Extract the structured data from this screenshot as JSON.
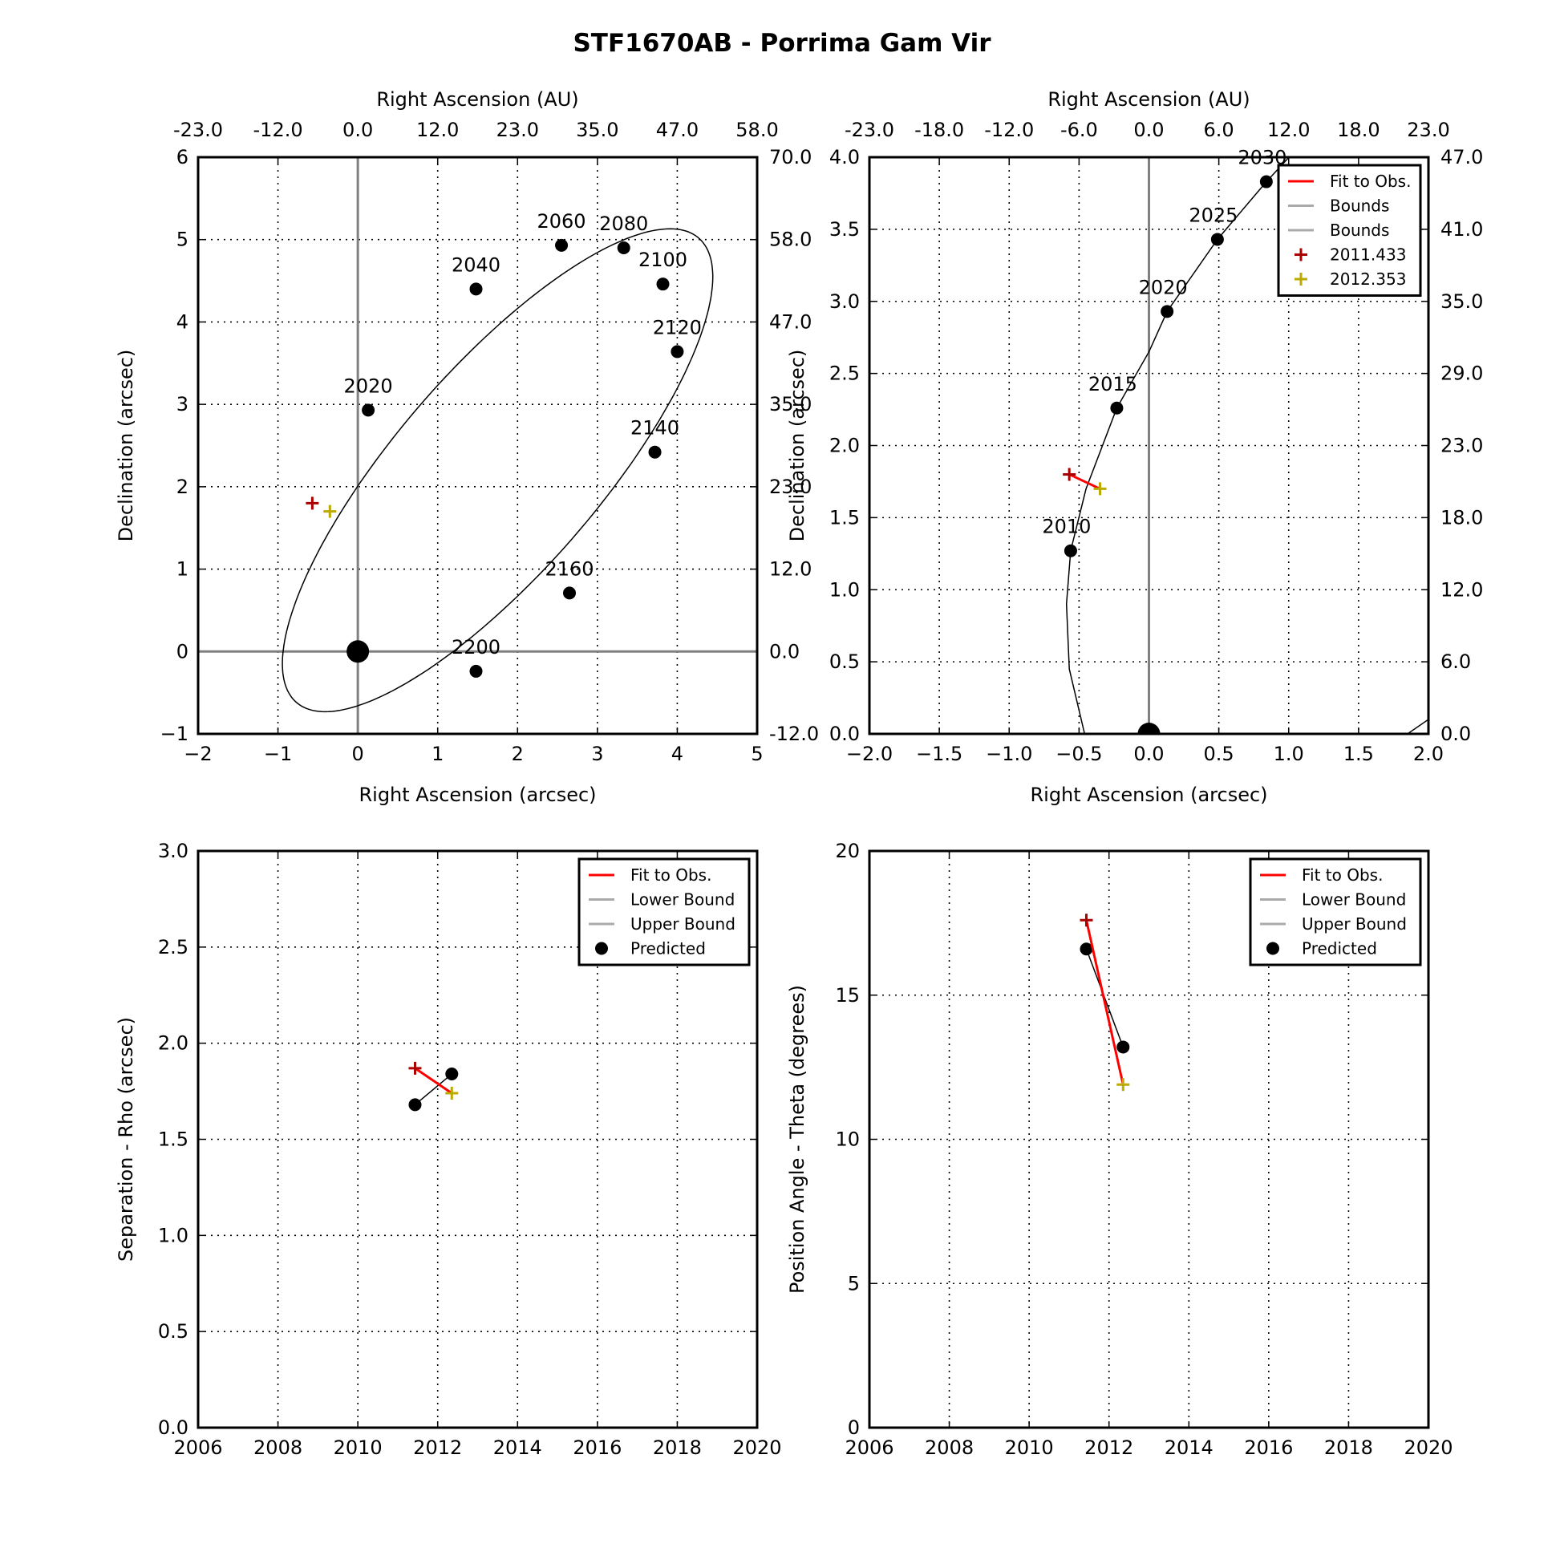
{
  "figure": {
    "title": "STF1670AB - Porrima Gam Vir"
  },
  "chart_data": [
    {
      "type": "scatter",
      "panel": "orbit-full",
      "xlabel": "Right Ascension (arcsec)",
      "ylabel": "Declination (arcsec)",
      "x2label": "Right Ascension (AU)",
      "xlim": [
        -2,
        5
      ],
      "ylim": [
        -1,
        6
      ],
      "xticks": [
        "−2",
        "−1",
        "0",
        "1",
        "2",
        "3",
        "4",
        "5"
      ],
      "yticks": [
        "−1",
        "0",
        "1",
        "2",
        "3",
        "4",
        "5",
        "6"
      ],
      "x2ticks": [
        "-23.0",
        "-12.0",
        "0.0",
        "12.0",
        "23.0",
        "35.0",
        "47.0",
        "58.0"
      ],
      "y2ticks": [
        "-12.0",
        "0.0",
        "12.0",
        "23.0",
        "35.0",
        "47.0",
        "58.0",
        "70.0"
      ],
      "grid": true,
      "orbit_ellipse": {
        "center": [
          1.75,
          2.2
        ],
        "semi_major": 3.78,
        "semi_minor": 1.25,
        "angle_deg": 48
      },
      "epochs": [
        {
          "label": "2020",
          "x": 0.13,
          "y": 2.93
        },
        {
          "label": "2040",
          "x": 1.48,
          "y": 4.4
        },
        {
          "label": "2060",
          "x": 2.55,
          "y": 4.93
        },
        {
          "label": "2080",
          "x": 3.33,
          "y": 4.9
        },
        {
          "label": "2100",
          "x": 3.82,
          "y": 4.46
        },
        {
          "label": "2120",
          "x": 4.0,
          "y": 3.64
        },
        {
          "label": "2140",
          "x": 3.72,
          "y": 2.42
        },
        {
          "label": "2160",
          "x": 2.65,
          "y": 0.71
        },
        {
          "label": "2200",
          "x": 1.48,
          "y": -0.24
        }
      ],
      "primary": {
        "x": 0,
        "y": 0
      },
      "observations": [
        {
          "label": "2011.433",
          "x": -0.57,
          "y": 1.8,
          "color": "#aa0000"
        },
        {
          "label": "2012.353",
          "x": -0.35,
          "y": 1.7,
          "color": "#bbaa00"
        }
      ]
    },
    {
      "type": "scatter",
      "panel": "orbit-zoom",
      "xlabel": "Right Ascension (arcsec)",
      "ylabel": "Declination (arcsec)",
      "x2label": "Right Ascension (AU)",
      "xlim": [
        -2,
        2
      ],
      "ylim": [
        0,
        4
      ],
      "xticks": [
        "−2.0",
        "−1.5",
        "−1.0",
        "−0.5",
        "0.0",
        "0.5",
        "1.0",
        "1.5",
        "2.0"
      ],
      "yticks": [
        "0.0",
        "0.5",
        "1.0",
        "1.5",
        "2.0",
        "2.5",
        "3.0",
        "3.5",
        "4.0"
      ],
      "x2ticks": [
        "-23.0",
        "-18.0",
        "-12.0",
        "-6.0",
        "0.0",
        "6.0",
        "12.0",
        "18.0",
        "23.0"
      ],
      "y2ticks": [
        "0.0",
        "6.0",
        "12.0",
        "18.0",
        "23.0",
        "29.0",
        "35.0",
        "41.0",
        "47.0"
      ],
      "grid": true,
      "epochs": [
        {
          "label": "2010",
          "x": -0.56,
          "y": 1.27
        },
        {
          "label": "2015",
          "x": -0.23,
          "y": 2.26
        },
        {
          "label": "2020",
          "x": 0.13,
          "y": 2.93
        },
        {
          "label": "2025",
          "x": 0.49,
          "y": 3.43
        },
        {
          "label": "2030",
          "x": 0.84,
          "y": 3.83
        }
      ],
      "primary": {
        "x": 0,
        "y": 0
      },
      "observations": [
        {
          "label": "2011.433",
          "x": -0.57,
          "y": 1.8,
          "color": "#aa0000"
        },
        {
          "label": "2012.353",
          "x": -0.35,
          "y": 1.7,
          "color": "#bbaa00"
        }
      ],
      "legend": {
        "placement": "top-right",
        "entries": [
          {
            "label": "Fit to Obs.",
            "kind": "line",
            "color": "#ff0000"
          },
          {
            "label": "Bounds",
            "kind": "line",
            "color": "#aaaaaa"
          },
          {
            "label": "Bounds",
            "kind": "line",
            "color": "#aaaaaa"
          },
          {
            "label": "2011.433",
            "kind": "plus",
            "color": "#aa0000"
          },
          {
            "label": "2012.353",
            "kind": "plus",
            "color": "#bbaa00"
          }
        ]
      }
    },
    {
      "type": "line",
      "panel": "separation",
      "ylabel": "Separation - Rho (arcsec)",
      "xlim": [
        2006,
        2020
      ],
      "ylim": [
        0,
        3
      ],
      "xticks": [
        "2006",
        "2008",
        "2010",
        "2012",
        "2014",
        "2016",
        "2018",
        "2020"
      ],
      "yticks": [
        "0.0",
        "0.5",
        "1.0",
        "1.5",
        "2.0",
        "2.5",
        "3.0"
      ],
      "grid": true,
      "observed": [
        {
          "x": 2011.433,
          "y": 1.87,
          "color": "#aa0000"
        },
        {
          "x": 2012.353,
          "y": 1.74,
          "color": "#bbaa00"
        }
      ],
      "predicted": [
        {
          "x": 2011.433,
          "y": 1.68
        },
        {
          "x": 2012.353,
          "y": 1.84
        }
      ],
      "legend": {
        "placement": "top-right",
        "entries": [
          {
            "label": "Fit to Obs.",
            "kind": "line",
            "color": "#ff0000"
          },
          {
            "label": "Lower Bound",
            "kind": "line",
            "color": "#aaaaaa"
          },
          {
            "label": "Upper Bound",
            "kind": "line",
            "color": "#aaaaaa"
          },
          {
            "label": "Predicted",
            "kind": "dot",
            "color": "#000000"
          }
        ]
      }
    },
    {
      "type": "line",
      "panel": "position-angle",
      "ylabel": "Position Angle - Theta (degrees)",
      "xlim": [
        2006,
        2020
      ],
      "ylim": [
        0,
        20
      ],
      "xticks": [
        "2006",
        "2008",
        "2010",
        "2012",
        "2014",
        "2016",
        "2018",
        "2020"
      ],
      "yticks": [
        "0",
        "5",
        "10",
        "15",
        "20"
      ],
      "grid": true,
      "observed": [
        {
          "x": 2011.433,
          "y": 17.6,
          "color": "#aa0000"
        },
        {
          "x": 2012.353,
          "y": 11.9,
          "color": "#bbaa00"
        }
      ],
      "predicted": [
        {
          "x": 2011.433,
          "y": 16.6
        },
        {
          "x": 2012.353,
          "y": 13.2
        }
      ],
      "legend": {
        "placement": "top-right",
        "entries": [
          {
            "label": "Fit to Obs.",
            "kind": "line",
            "color": "#ff0000"
          },
          {
            "label": "Lower Bound",
            "kind": "line",
            "color": "#aaaaaa"
          },
          {
            "label": "Upper Bound",
            "kind": "line",
            "color": "#aaaaaa"
          },
          {
            "label": "Predicted",
            "kind": "dot",
            "color": "#000000"
          }
        ]
      }
    }
  ]
}
